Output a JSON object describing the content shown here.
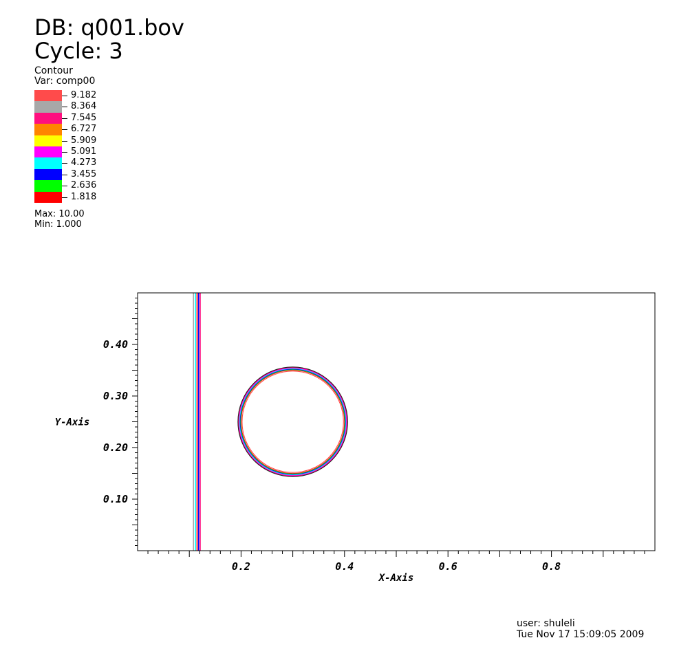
{
  "header": {
    "db": "DB: q001.bov",
    "cycle": "Cycle: 3"
  },
  "legend": {
    "title": "Contour",
    "var": "Var: comp00",
    "levels": [
      {
        "label": "9.182",
        "color": "#ff4b4b"
      },
      {
        "label": "8.364",
        "color": "#a8a8a8"
      },
      {
        "label": "7.545",
        "color": "#ff0f7f"
      },
      {
        "label": "6.727",
        "color": "#ff8500"
      },
      {
        "label": "5.909",
        "color": "#ffff00"
      },
      {
        "label": "5.091",
        "color": "#ff00ff"
      },
      {
        "label": "4.273",
        "color": "#00ffff"
      },
      {
        "label": "3.455",
        "color": "#0000ff"
      },
      {
        "label": "2.636",
        "color": "#00ff00"
      },
      {
        "label": "1.818",
        "color": "#ff0000"
      }
    ],
    "max": "Max:  10.00",
    "min": "Min:  1.000"
  },
  "footer": {
    "user": "user: shuleli",
    "date": "Tue Nov 17 15:09:05 2009"
  },
  "chart_data": {
    "type": "contour",
    "variable": "comp00",
    "xlabel": "X-Axis",
    "ylabel": "Y-Axis",
    "xlim": [
      0.0,
      1.0
    ],
    "ylim": [
      0.0,
      0.5
    ],
    "xticks": [
      0.2,
      0.4,
      0.6,
      0.8
    ],
    "xtick_labels": [
      "0.2",
      "0.4",
      "0.6",
      "0.8"
    ],
    "yticks": [
      0.1,
      0.2,
      0.3,
      0.4
    ],
    "ytick_labels": [
      "0.10",
      "0.20",
      "0.30",
      "0.40"
    ],
    "levels": [
      1.818,
      2.636,
      3.455,
      4.273,
      5.091,
      5.909,
      6.727,
      7.545,
      8.364,
      9.182
    ],
    "value_range": [
      1.0,
      10.0
    ],
    "features": {
      "vertical_front": {
        "x_positions": [
          0.108,
          0.112,
          0.115,
          0.118,
          0.121
        ],
        "colors": [
          "#a8a8a8",
          "#00ffff",
          "#ff0000",
          "#0000ff",
          "#ff0f7f"
        ]
      },
      "circle": {
        "center": [
          0.3,
          0.25
        ],
        "radii": [
          0.098,
          0.1,
          0.101,
          0.102,
          0.103,
          0.104,
          0.105,
          0.106
        ],
        "colors": [
          "#ff4b4b",
          "#ff0000",
          "#00ff00",
          "#0000ff",
          "#00ffff",
          "#ff00ff",
          "#ff0f7f",
          "#222222"
        ]
      }
    }
  }
}
